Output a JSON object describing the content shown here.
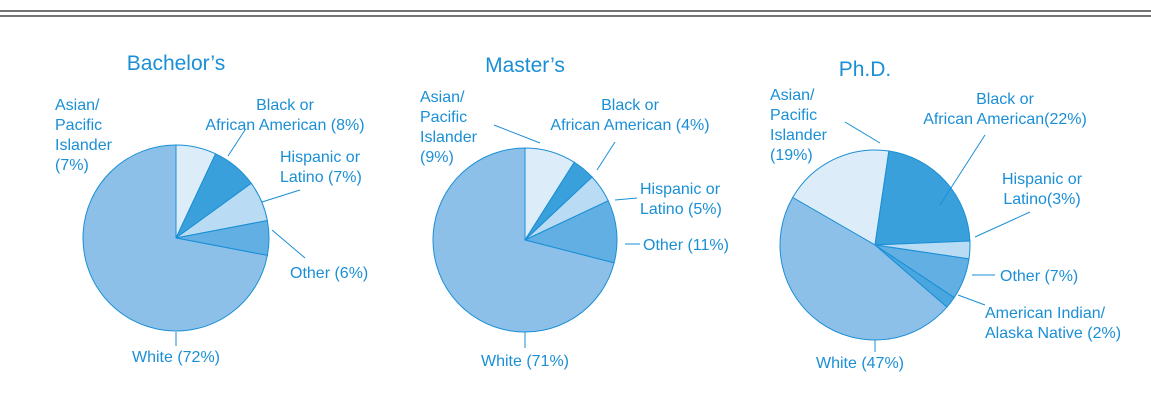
{
  "chart_data": [
    {
      "type": "pie",
      "title": "Bachelor’s",
      "categories": [
        "Asian/\nPacific\nIslander\n(7%)",
        "Black or\nAfrican American (8%)",
        "Hispanic or\nLatino (7%)",
        "Other (6%)",
        "White (72%)"
      ],
      "values": [
        7,
        8,
        7,
        6,
        72
      ],
      "colors": [
        "#dcedf9",
        "#3aa0dc",
        "#b9dbf3",
        "#62b0e3",
        "#8dc0e8"
      ]
    },
    {
      "type": "pie",
      "title": "Master’s",
      "categories": [
        "Asian/\nPacific\nIslander\n(9%)",
        "Black or\nAfrican American (4%)",
        "Hispanic or\nLatino (5%)",
        "Other (11%)",
        "White (71%)"
      ],
      "values": [
        9,
        4,
        5,
        11,
        71
      ],
      "colors": [
        "#dcedf9",
        "#3aa0dc",
        "#b9dbf3",
        "#62b0e3",
        "#8dc0e8"
      ]
    },
    {
      "type": "pie",
      "title": "Ph.D.",
      "categories": [
        "Asian/\nPacific\nIslander\n(19%)",
        "Black  or\nAfrican American(22%)",
        "Hispanic or\nLatino(3%)",
        "Other (7%)",
        "American Indian/\nAlaska Native (2%)",
        "White (47%)"
      ],
      "values": [
        19,
        22,
        3,
        7,
        2,
        47
      ],
      "colors": [
        "#dcedf9",
        "#3aa0dc",
        "#b9dbf3",
        "#62b0e3",
        "#4aa6df",
        "#8dc0e8"
      ]
    }
  ]
}
